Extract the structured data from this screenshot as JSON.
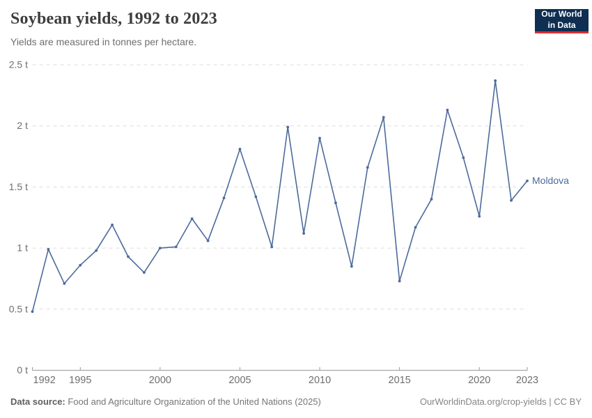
{
  "header": {
    "title": "Soybean yields, 1992 to 2023",
    "subtitle": "Yields are measured in tonnes per hectare.",
    "logo_line1": "Our World",
    "logo_line2": "in Data",
    "logo_bg": "#0f2e52",
    "logo_bar": "#dc2e31"
  },
  "chart_data": {
    "type": "line",
    "title": "Soybean yields, 1992 to 2023",
    "ylabel": "tonnes per hectare",
    "unit": "t",
    "x": [
      1992,
      1993,
      1994,
      1995,
      1996,
      1997,
      1998,
      1999,
      2000,
      2001,
      2002,
      2003,
      2004,
      2005,
      2006,
      2007,
      2008,
      2009,
      2010,
      2011,
      2012,
      2013,
      2014,
      2015,
      2016,
      2017,
      2018,
      2019,
      2020,
      2021,
      2022,
      2023
    ],
    "series": [
      {
        "name": "Moldova",
        "color": "#4c6a9c",
        "values": [
          0.48,
          0.99,
          0.71,
          0.86,
          0.98,
          1.19,
          0.93,
          0.8,
          1.0,
          1.01,
          1.24,
          1.06,
          1.41,
          1.81,
          1.42,
          1.01,
          1.99,
          1.12,
          1.9,
          1.37,
          0.85,
          1.66,
          2.07,
          0.73,
          1.17,
          1.4,
          2.13,
          1.74,
          1.26,
          2.37,
          1.39,
          1.55
        ]
      }
    ],
    "xlim": [
      1992,
      2023
    ],
    "ylim": [
      0,
      2.5
    ],
    "yticks": [
      0,
      0.5,
      1,
      1.5,
      2,
      2.5
    ],
    "ytick_labels": [
      "0 t",
      "0.5 t",
      "1 t",
      "1.5 t",
      "2 t",
      "2.5 t"
    ],
    "xticks": [
      1992,
      1995,
      2000,
      2005,
      2010,
      2015,
      2020,
      2023
    ],
    "grid": "horizontal-dashed",
    "grid_color": "#dcdcdc",
    "axis_color": "#999999",
    "tick_label_color": "#6e6e6e",
    "legend_position": "end-of-line-label"
  },
  "footer": {
    "source_label": "Data source:",
    "source_text": " Food and Agriculture Organization of the United Nations (2025)",
    "link_text": "OurWorldinData.org/crop-yields | CC BY"
  }
}
